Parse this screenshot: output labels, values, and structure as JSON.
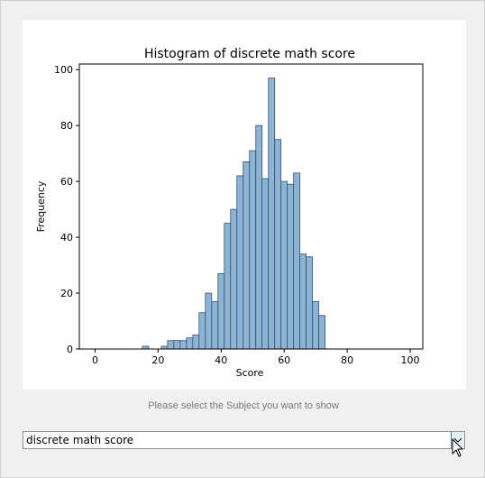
{
  "chart_data": {
    "type": "bar",
    "title": "Histogram of discrete math score",
    "xlabel": "Score",
    "ylabel": "Frequency",
    "xlim": [
      -5,
      104
    ],
    "ylim": [
      0,
      102
    ],
    "xticks": [
      0,
      20,
      40,
      60,
      80,
      100
    ],
    "yticks": [
      0,
      20,
      40,
      60,
      80,
      100
    ],
    "bin_width": 2,
    "bin_starts": [
      15,
      17,
      19,
      21,
      23,
      25,
      27,
      29,
      31,
      33,
      35,
      37,
      39,
      41,
      43,
      45,
      47,
      49,
      51,
      53,
      55,
      57,
      59,
      61,
      63,
      65,
      67,
      69,
      71,
      73,
      75,
      77,
      79,
      81,
      83,
      85,
      87,
      89,
      91,
      93,
      95,
      97
    ],
    "values": [
      1,
      0,
      0,
      1,
      3,
      3,
      3,
      4,
      5,
      13,
      20,
      17,
      27,
      45,
      50,
      62,
      67,
      71,
      80,
      61,
      97,
      75,
      60,
      59,
      63,
      34,
      33,
      17,
      12,
      0,
      0,
      0,
      0,
      0,
      0,
      0,
      0,
      0,
      0,
      0,
      0,
      0
    ],
    "bar_color": "#8cb4d6",
    "edge_color": "#3d4f60",
    "grid": false
  },
  "hint_text": "Please select the Subject you want to show",
  "subject_select": {
    "selected": "discrete math score",
    "arrow_icon": "chevron-down-icon"
  }
}
